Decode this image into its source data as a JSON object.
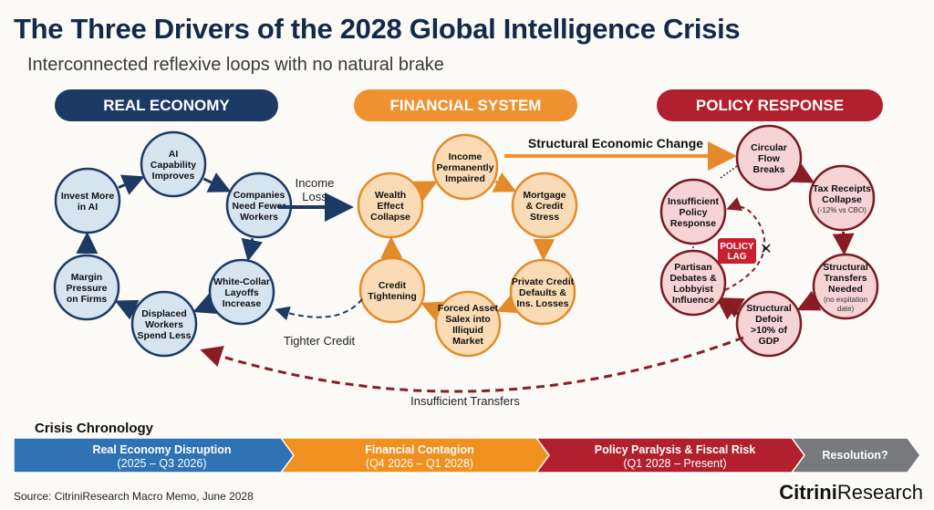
{
  "title": "The Three Drivers of the 2028 Global Intelligence Crisis",
  "subtitle": "Interconnected reflexive loops with no natural brake",
  "sections": [
    {
      "label": "REAL ECONOMY",
      "color": "#1c3a64"
    },
    {
      "label": "FINANCIAL SYSTEM",
      "color": "#ef9130"
    },
    {
      "label": "POLICY RESPONSE",
      "color": "#b21f2d"
    }
  ],
  "loops": {
    "real_economy": {
      "fill": "#d6e4f0",
      "stroke": "#1c3a64",
      "nodes": [
        {
          "lines": [
            "AI",
            "Capability",
            "Improves"
          ]
        },
        {
          "lines": [
            "Companies",
            "Need Fewer",
            "Workers"
          ]
        },
        {
          "lines": [
            "White-Collar",
            "Layoffs",
            "Increase"
          ]
        },
        {
          "lines": [
            "Displaced",
            "Workers",
            "Spend Less"
          ]
        },
        {
          "lines": [
            "Margin",
            "Pressure",
            "on Firms"
          ]
        },
        {
          "lines": [
            "Invest More",
            "in AI"
          ]
        }
      ]
    },
    "financial_system": {
      "fill": "#f9dcb6",
      "stroke": "#e48a2a",
      "nodes": [
        {
          "lines": [
            "Income",
            "Permanently",
            "Impaired"
          ]
        },
        {
          "lines": [
            "Mortgage",
            "& Credit",
            "Stress"
          ]
        },
        {
          "lines": [
            "Private Credit",
            "Defaults &",
            "Ins. Losses"
          ]
        },
        {
          "lines": [
            "Forced Asset",
            "Salex into",
            "Illiquid",
            "Market"
          ]
        },
        {
          "lines": [
            "Credit",
            "Tightening"
          ]
        },
        {
          "lines": [
            "Wealth",
            "Effect",
            "Collapse"
          ]
        }
      ]
    },
    "policy_response": {
      "fill": "#f6d3d5",
      "stroke": "#7a1a22",
      "nodes": [
        {
          "lines": [
            "Circular",
            "Flow",
            "Breaks"
          ]
        },
        {
          "lines": [
            "Tax Receipts",
            "Collapse"
          ],
          "note": [
            "(-12% vs CBO)"
          ]
        },
        {
          "lines": [
            "Structural",
            "Transfers",
            "Needed"
          ],
          "note": [
            "(no expitation",
            "date)"
          ]
        },
        {
          "lines": [
            "Structural",
            "Defoit",
            ">10% of",
            "GDP"
          ]
        },
        {
          "lines": [
            "Partisan",
            "Debates &",
            "Lobbyist",
            "Influence"
          ]
        },
        {
          "lines": [
            "Insufficient",
            "Policy",
            "Response"
          ]
        }
      ]
    }
  },
  "connectors": {
    "income_loss": "Income\nLoss",
    "tighter_credit": "Tighter Credit",
    "structural_change": "Structural Economic Change",
    "insufficient_transfers": "Insufficient Transfers",
    "policy_lag": "POLICY\nLAG"
  },
  "timeline": {
    "title": "Crisis Chronology",
    "phases": [
      {
        "label": "Real Economy Disruption",
        "period": "(2025 – Q3 2026)",
        "color": "#2f73b5"
      },
      {
        "label": "Financial Contagion",
        "period": "(Q4 2026 – Q1 2028)",
        "color": "#f0901f"
      },
      {
        "label": "Policy Paralysis & Fiscal Risk",
        "period": "(Q1 2028 – Present)",
        "color": "#b21f2d"
      },
      {
        "label": "Resolution?",
        "period": "",
        "color": "#77797c"
      }
    ]
  },
  "source": "Source: CitriniResearch Macro Memo, June 2028",
  "brand": {
    "bold": "Citrini",
    "light": "Research"
  }
}
